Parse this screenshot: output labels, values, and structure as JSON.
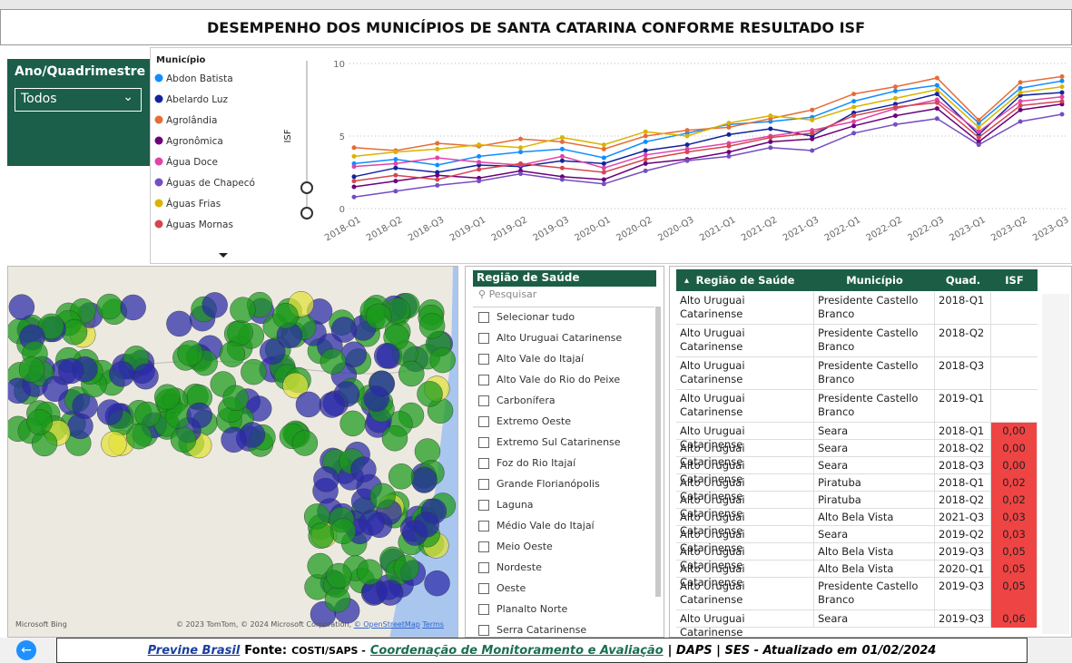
{
  "header": {
    "title": "DESEMPENHO DOS MUNICÍPIOS DE SANTA CATARINA CONFORME RESULTADO ISF"
  },
  "filter": {
    "label": "Ano/Quadrimestre",
    "value": "Todos"
  },
  "chart_data": {
    "type": "line",
    "legend_title": "Município",
    "y_label": "ISF",
    "categories": [
      "2018-Q1",
      "2018-Q2",
      "2018-Q3",
      "2019-Q1",
      "2019-Q2",
      "2019-Q3",
      "2020-Q1",
      "2020-Q2",
      "2020-Q3",
      "2021-Q1",
      "2021-Q2",
      "2021-Q3",
      "2022-Q1",
      "2022-Q2",
      "2022-Q3",
      "2023-Q1",
      "2023-Q2",
      "2023-Q3"
    ],
    "ylim": [
      0,
      10
    ],
    "yticks": [
      0,
      5,
      10
    ],
    "grid": true,
    "series": [
      {
        "name": "Abdon Batista",
        "color": "#118dff",
        "values": [
          3.1,
          3.4,
          3.0,
          3.6,
          3.9,
          4.1,
          3.5,
          4.6,
          5.2,
          5.8,
          6.0,
          6.3,
          7.4,
          8.1,
          8.5,
          5.9,
          8.3,
          8.8
        ]
      },
      {
        "name": "Abelardo Luz",
        "color": "#12239e",
        "values": [
          2.2,
          2.8,
          2.5,
          3.0,
          2.9,
          3.3,
          3.1,
          4.0,
          4.4,
          5.1,
          5.5,
          5.0,
          6.6,
          7.2,
          7.9,
          5.1,
          7.8,
          8.0
        ]
      },
      {
        "name": "Agrolândia",
        "color": "#e66c37",
        "values": [
          4.2,
          4.0,
          4.5,
          4.3,
          4.8,
          4.6,
          4.1,
          5.0,
          5.4,
          5.6,
          6.2,
          6.8,
          7.9,
          8.4,
          9.0,
          6.1,
          8.7,
          9.1
        ]
      },
      {
        "name": "Agronômica",
        "color": "#6b007b",
        "values": [
          1.5,
          1.9,
          2.3,
          2.1,
          2.6,
          2.2,
          2.0,
          3.1,
          3.4,
          3.9,
          4.6,
          4.8,
          5.7,
          6.4,
          6.9,
          4.6,
          6.8,
          7.2
        ]
      },
      {
        "name": "Água Doce",
        "color": "#e044a7",
        "values": [
          2.9,
          3.1,
          3.5,
          3.2,
          3.0,
          3.6,
          2.8,
          3.7,
          4.1,
          4.5,
          5.0,
          5.4,
          6.0,
          6.9,
          7.5,
          5.3,
          7.4,
          7.7
        ]
      },
      {
        "name": "Águas de Chapecó",
        "color": "#744ec2",
        "values": [
          0.8,
          1.2,
          1.6,
          1.9,
          2.4,
          2.0,
          1.7,
          2.6,
          3.3,
          3.6,
          4.2,
          4.0,
          5.2,
          5.8,
          6.2,
          4.4,
          6.0,
          6.5
        ]
      },
      {
        "name": "Águas Frias",
        "color": "#d9b300",
        "values": [
          3.6,
          3.9,
          4.1,
          4.4,
          4.2,
          4.9,
          4.4,
          5.3,
          5.0,
          5.9,
          6.4,
          6.1,
          7.0,
          7.6,
          8.2,
          5.6,
          8.0,
          8.4
        ]
      },
      {
        "name": "Águas Mornas",
        "color": "#d64550",
        "values": [
          1.9,
          2.3,
          2.0,
          2.7,
          3.1,
          2.8,
          2.5,
          3.4,
          3.9,
          4.3,
          4.9,
          5.2,
          6.4,
          7.0,
          7.3,
          4.9,
          7.1,
          7.4
        ]
      }
    ]
  },
  "map": {
    "bing": "Microsoft Bing",
    "attribution": "© 2023 TomTom, © 2024 Microsoft Corporation,",
    "osm": "© OpenStreetMap",
    "terms": "Terms"
  },
  "slicer": {
    "title": "Região de Saúde",
    "search": "Pesquisar",
    "items": [
      "Selecionar tudo",
      "Alto Uruguai Catarinense",
      "Alto Vale do Itajaí",
      "Alto Vale do Rio do Peixe",
      "Carbonífera",
      "Extremo Oeste",
      "Extremo Sul Catarinense",
      "Foz do Rio Itajaí",
      "Grande Florianópolis",
      "Laguna",
      "Médio Vale do Itajaí",
      "Meio Oeste",
      "Nordeste",
      "Oeste",
      "Planalto Norte",
      "Serra Catarinense"
    ]
  },
  "table": {
    "headers": [
      "Região de Saúde",
      "Município",
      "Quad.",
      "ISF"
    ],
    "rows": [
      [
        "Alto Uruguai Catarinense",
        "Presidente Castello Branco",
        "2018-Q1",
        null
      ],
      [
        "Alto Uruguai Catarinense",
        "Presidente Castello Branco",
        "2018-Q2",
        null
      ],
      [
        "Alto Uruguai Catarinense",
        "Presidente Castello Branco",
        "2018-Q3",
        null
      ],
      [
        "Alto Uruguai Catarinense",
        "Presidente Castello Branco",
        "2019-Q1",
        null
      ],
      [
        "Alto Uruguai Catarinense",
        "Seara",
        "2018-Q1",
        "0,00"
      ],
      [
        "Alto Uruguai Catarinense",
        "Seara",
        "2018-Q2",
        "0,00"
      ],
      [
        "Alto Uruguai Catarinense",
        "Seara",
        "2018-Q3",
        "0,00"
      ],
      [
        "Alto Uruguai Catarinense",
        "Piratuba",
        "2018-Q1",
        "0,02"
      ],
      [
        "Alto Uruguai Catarinense",
        "Piratuba",
        "2018-Q2",
        "0,02"
      ],
      [
        "Alto Uruguai Catarinense",
        "Alto Bela Vista",
        "2021-Q3",
        "0,03"
      ],
      [
        "Alto Uruguai Catarinense",
        "Seara",
        "2019-Q2",
        "0,03"
      ],
      [
        "Alto Uruguai Catarinense",
        "Alto Bela Vista",
        "2019-Q3",
        "0,05"
      ],
      [
        "Alto Uruguai Catarinense",
        "Alto Bela Vista",
        "2020-Q1",
        "0,05"
      ],
      [
        "Alto Uruguai Catarinense",
        "Presidente Castello Branco",
        "2019-Q3",
        "0,05"
      ],
      [
        "Alto Uruguai Catarinense",
        "Seara",
        "2019-Q3",
        "0,06"
      ]
    ]
  },
  "footer": {
    "link": "Previne Brasil",
    "source": "Fonte:",
    "org": "COSTI/SAPS -",
    "coord": "Coordenação de Monitoramento e Avaliação",
    "rest": "| DAPS | SES - Atualizado em",
    "date": "01/02/2024"
  }
}
